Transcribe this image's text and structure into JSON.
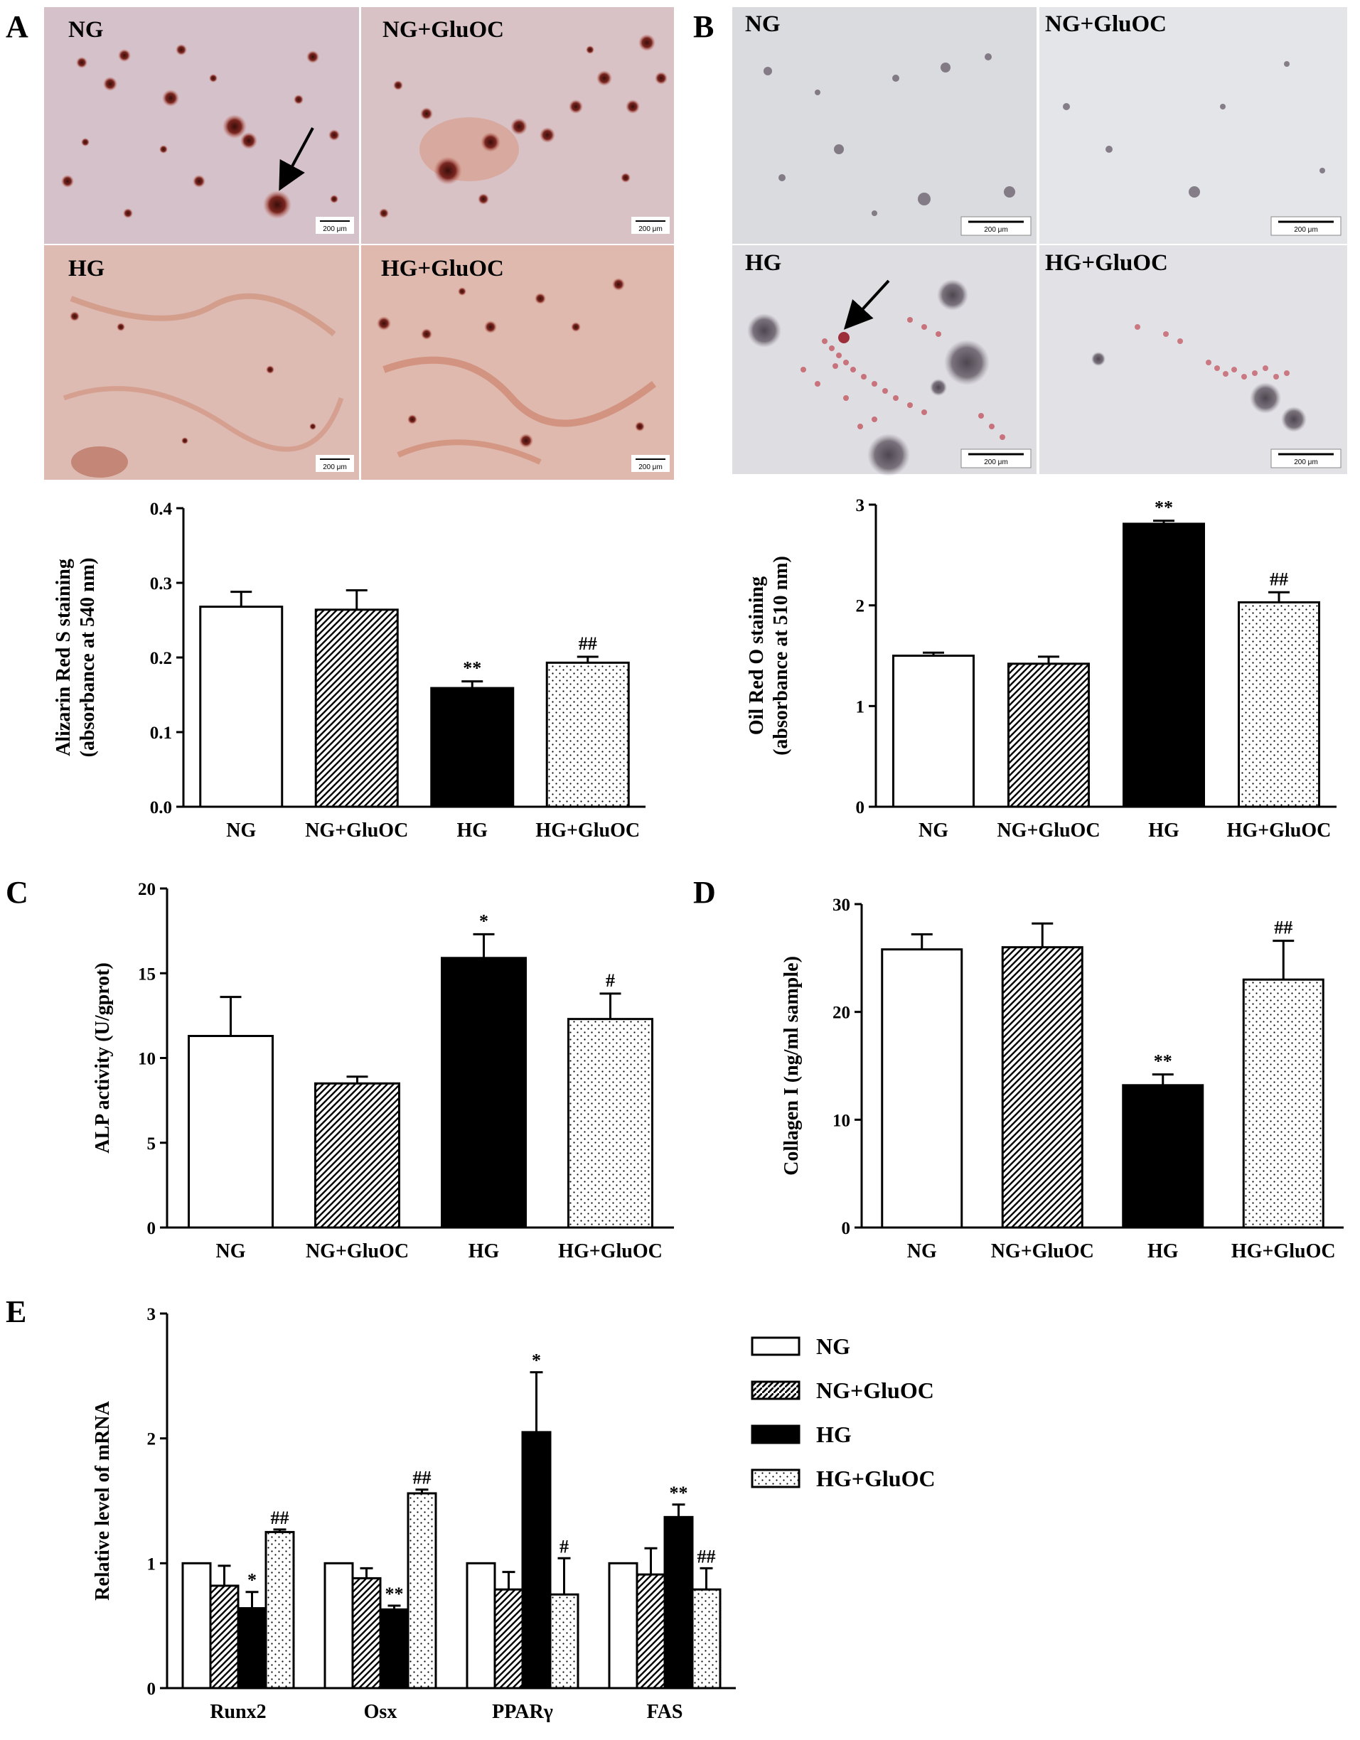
{
  "colors": {
    "white": "#ffffff",
    "black": "#000000",
    "hatch": "#000000"
  },
  "micro_panels": [
    {
      "panel": "A",
      "stain": "alizarin-red",
      "images": [
        {
          "label": "NG",
          "scale": "200 μm",
          "arrow": true
        },
        {
          "label": "NG+GluOC",
          "scale": "200 μm",
          "arrow": false
        },
        {
          "label": "HG",
          "scale": "200 μm",
          "arrow": false
        },
        {
          "label": "HG+GluOC",
          "scale": "200 μm",
          "arrow": false
        }
      ]
    },
    {
      "panel": "B",
      "stain": "oil-red",
      "images": [
        {
          "label": "NG",
          "scale": "200 μm",
          "arrow": false
        },
        {
          "label": "NG+GluOC",
          "scale": "200 μm",
          "arrow": false
        },
        {
          "label": "HG",
          "scale": "200 μm",
          "arrow": true
        },
        {
          "label": "HG+GluOC",
          "scale": "200 μm",
          "arrow": false
        }
      ]
    }
  ],
  "chart_data": [
    {
      "id": "A",
      "type": "bar",
      "categories": [
        "NG",
        "NG+GluOC",
        "HG",
        "HG+GluOC"
      ],
      "values": [
        0.268,
        0.264,
        0.159,
        0.193
      ],
      "errors": [
        0.02,
        0.026,
        0.009,
        0.008
      ],
      "annotations": [
        "",
        "",
        "**",
        "##"
      ],
      "patterns": [
        "white",
        "hatch",
        "black",
        "dots"
      ],
      "ylabel": [
        "Alizarin Red S staining",
        "(absorbance at 540 nm)"
      ],
      "ylim": [
        0,
        0.4
      ],
      "yticks": [
        "0.0",
        "0.1",
        "0.2",
        "0.3",
        "0.4"
      ]
    },
    {
      "id": "B",
      "type": "bar",
      "categories": [
        "NG",
        "NG+GluOC",
        "HG",
        "HG+GluOC"
      ],
      "values": [
        1.5,
        1.42,
        2.81,
        2.03
      ],
      "errors": [
        0.03,
        0.07,
        0.03,
        0.1
      ],
      "annotations": [
        "",
        "",
        "**",
        "##"
      ],
      "patterns": [
        "white",
        "hatch",
        "black",
        "dots"
      ],
      "ylabel": [
        "Oil Red O staining",
        "(absorbance at 510 nm)"
      ],
      "ylim": [
        0,
        3
      ],
      "yticks": [
        "0",
        "1",
        "2",
        "3"
      ]
    },
    {
      "id": "C",
      "type": "bar",
      "categories": [
        "NG",
        "NG+GluOC",
        "HG",
        "HG+GluOC"
      ],
      "values": [
        11.3,
        8.5,
        15.9,
        12.3
      ],
      "errors": [
        2.3,
        0.4,
        1.4,
        1.5
      ],
      "annotations": [
        "",
        "",
        "*",
        "#"
      ],
      "patterns": [
        "white",
        "hatch",
        "black",
        "dots"
      ],
      "ylabel": [
        "ALP activity (U/gprot)"
      ],
      "ylim": [
        0,
        20
      ],
      "yticks": [
        "0",
        "5",
        "10",
        "15",
        "20"
      ]
    },
    {
      "id": "D",
      "type": "bar",
      "categories": [
        "NG",
        "NG+GluOC",
        "HG",
        "HG+GluOC"
      ],
      "values": [
        25.8,
        26.0,
        13.2,
        23.0
      ],
      "errors": [
        1.4,
        2.2,
        1.0,
        3.6
      ],
      "annotations": [
        "",
        "",
        "**",
        "##"
      ],
      "patterns": [
        "white",
        "hatch",
        "black",
        "dots"
      ],
      "ylabel": [
        "Collagen I (ng/ml sample)"
      ],
      "ylim": [
        0,
        30
      ],
      "yticks": [
        "0",
        "10",
        "20",
        "30"
      ]
    },
    {
      "id": "E",
      "type": "bar",
      "categories": [
        "Runx2",
        "Osx",
        "PPARγ",
        "FAS"
      ],
      "series": [
        {
          "name": "NG",
          "pattern": "white",
          "values": [
            1.0,
            1.0,
            1.0,
            1.0
          ],
          "errors": [
            0,
            0,
            0,
            0
          ],
          "annotations": [
            "",
            "",
            "",
            ""
          ]
        },
        {
          "name": "NG+GluOC",
          "pattern": "hatch",
          "values": [
            0.82,
            0.88,
            0.79,
            0.91
          ],
          "errors": [
            0.16,
            0.08,
            0.14,
            0.21
          ],
          "annotations": [
            "",
            "",
            "",
            ""
          ]
        },
        {
          "name": "HG",
          "pattern": "black",
          "values": [
            0.64,
            0.63,
            2.05,
            1.37
          ],
          "errors": [
            0.13,
            0.03,
            0.48,
            0.1
          ],
          "annotations": [
            "*",
            "**",
            "*",
            "**"
          ]
        },
        {
          "name": "HG+GluOC",
          "pattern": "dots",
          "values": [
            1.25,
            1.56,
            0.75,
            0.79
          ],
          "errors": [
            0.02,
            0.03,
            0.29,
            0.17
          ],
          "annotations": [
            "##",
            "##",
            "#",
            "##"
          ]
        }
      ],
      "ylabel": [
        "Relative level of mRNA"
      ],
      "ylim": [
        0,
        3
      ],
      "yticks": [
        "0",
        "1",
        "2",
        "3"
      ],
      "legend": "right"
    }
  ]
}
